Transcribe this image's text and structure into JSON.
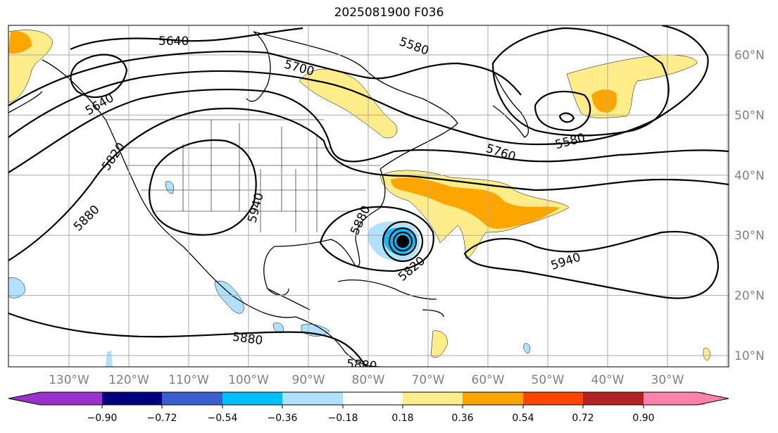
{
  "title": "2025081900 F036",
  "map": {
    "lon_labels": [
      "130°W",
      "120°W",
      "110°W",
      "100°W",
      "90°W",
      "80°W",
      "70°W",
      "60°W",
      "50°W",
      "40°W",
      "30°W"
    ],
    "lat_labels": [
      "60°N",
      "50°N",
      "40°N",
      "30°N",
      "20°N",
      "10°N"
    ],
    "contour_labels": [
      {
        "text": "5640"
      },
      {
        "text": "5580"
      },
      {
        "text": "5700"
      },
      {
        "text": "5640"
      },
      {
        "text": "5580"
      },
      {
        "text": "5760"
      },
      {
        "text": "5820"
      },
      {
        "text": "5880"
      },
      {
        "text": "5940"
      },
      {
        "text": "5880"
      },
      {
        "text": "5820"
      },
      {
        "text": "5940"
      },
      {
        "text": "5880"
      },
      {
        "text": "5880"
      }
    ]
  },
  "colorbar": {
    "colors": [
      "#9933cc",
      "#000080",
      "#3a5fcd",
      "#00bfff",
      "#b0e2ff",
      "#ffffff",
      "#ffec8b",
      "#ffa500",
      "#ff4500",
      "#b22222",
      "#ff82ab"
    ],
    "ticks": [
      "−0.90",
      "−0.72",
      "−0.54",
      "−0.36",
      "−0.18",
      "0.18",
      "0.36",
      "0.54",
      "0.72",
      "0.90"
    ]
  }
}
